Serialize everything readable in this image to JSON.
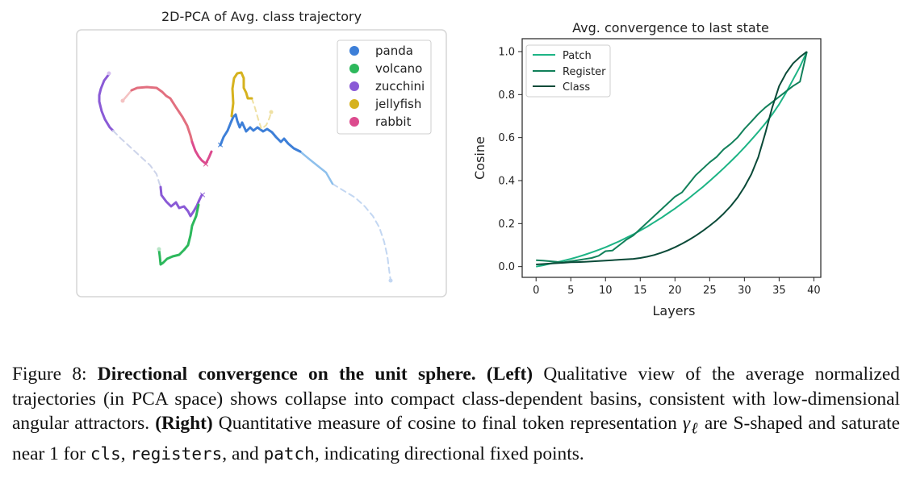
{
  "chart_data": [
    {
      "type": "line",
      "title": "2D-PCA of Avg. class trajectory",
      "legend_position": "top-right",
      "axes_visible": false,
      "series": [
        {
          "name": "panda",
          "color": "#3d7fd8"
        },
        {
          "name": "volcano",
          "color": "#2db85c"
        },
        {
          "name": "zucchini",
          "color": "#8a5ad6"
        },
        {
          "name": "jellyfish",
          "color": "#d6b21e"
        },
        {
          "name": "rabbit",
          "color": "#dc4b8e"
        }
      ]
    },
    {
      "type": "line",
      "title": "Avg. convergence to last state",
      "xlabel": "Layers",
      "ylabel": "Cosine",
      "xlim": [
        -2,
        41
      ],
      "ylim": [
        -0.05,
        1.06
      ],
      "xticks": [
        0,
        5,
        10,
        15,
        20,
        25,
        30,
        35,
        40
      ],
      "yticks": [
        0.0,
        0.2,
        0.4,
        0.6,
        0.8,
        1.0
      ],
      "legend_position": "top-left",
      "grid": false,
      "x": [
        0,
        1,
        2,
        3,
        4,
        5,
        6,
        7,
        8,
        9,
        10,
        11,
        12,
        13,
        14,
        15,
        16,
        17,
        18,
        19,
        20,
        21,
        22,
        23,
        24,
        25,
        26,
        27,
        28,
        29,
        30,
        31,
        32,
        33,
        34,
        35,
        36,
        37,
        38,
        39
      ],
      "series": [
        {
          "name": "Patch",
          "color": "#1db485",
          "values": [
            0.0,
            0.006,
            0.013,
            0.02,
            0.028,
            0.036,
            0.045,
            0.055,
            0.066,
            0.078,
            0.09,
            0.104,
            0.118,
            0.134,
            0.15,
            0.168,
            0.186,
            0.206,
            0.226,
            0.248,
            0.27,
            0.294,
            0.318,
            0.344,
            0.37,
            0.398,
            0.427,
            0.457,
            0.488,
            0.52,
            0.554,
            0.59,
            0.627,
            0.666,
            0.708,
            0.755,
            0.81,
            0.87,
            0.93,
            1.0
          ]
        },
        {
          "name": "Register",
          "color": "#11805a",
          "values": [
            0.03,
            0.028,
            0.025,
            0.022,
            0.02,
            0.025,
            0.03,
            0.035,
            0.04,
            0.05,
            0.072,
            0.075,
            0.1,
            0.125,
            0.145,
            0.175,
            0.205,
            0.235,
            0.265,
            0.295,
            0.325,
            0.345,
            0.385,
            0.425,
            0.455,
            0.485,
            0.51,
            0.545,
            0.57,
            0.6,
            0.64,
            0.675,
            0.71,
            0.74,
            0.765,
            0.79,
            0.815,
            0.84,
            0.86,
            1.0
          ]
        },
        {
          "name": "Class",
          "color": "#0a4a38",
          "values": [
            0.01,
            0.012,
            0.014,
            0.016,
            0.018,
            0.02,
            0.021,
            0.022,
            0.024,
            0.026,
            0.028,
            0.03,
            0.032,
            0.034,
            0.036,
            0.04,
            0.046,
            0.054,
            0.064,
            0.076,
            0.09,
            0.106,
            0.124,
            0.144,
            0.166,
            0.19,
            0.216,
            0.246,
            0.28,
            0.32,
            0.37,
            0.43,
            0.51,
            0.62,
            0.74,
            0.84,
            0.9,
            0.945,
            0.975,
            1.0
          ]
        }
      ]
    }
  ],
  "caption": {
    "label": "Figure 8:",
    "title": "Directional convergence on the unit sphere.",
    "left_tag": "(Left)",
    "left_text": "Qualitative view of the average normalized trajectories (in PCA space) shows collapse into compact class-dependent basins, consistent with low-dimensional angular attractors.",
    "right_tag": "(Right)",
    "right_text_1": "Quantitative measure of cosine to final token representation",
    "gamma": "γ",
    "gamma_sub": "ℓ",
    "right_text_2": "are S-shaped and saturate near",
    "one": "1",
    "for_text": "for",
    "code_cls": "cls",
    "comma": ",",
    "code_registers": "registers",
    "and_text": ", and",
    "code_patch": "patch",
    "right_text_3": ", indicating directional fixed points."
  }
}
